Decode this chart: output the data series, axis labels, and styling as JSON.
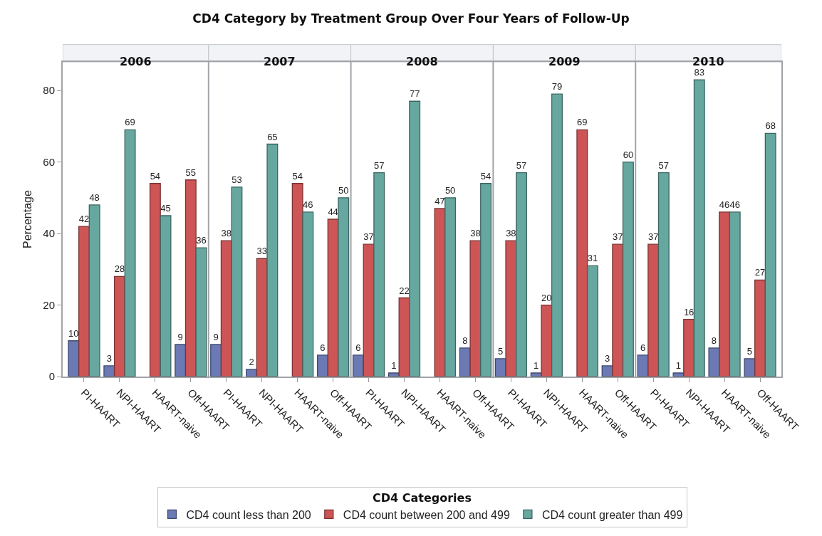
{
  "chart_data": {
    "type": "bar",
    "title": "CD4 Category by Treatment Group Over Four Years of Follow-Up",
    "ylabel": "Percentage",
    "legend_title": "CD4 Categories",
    "legend": "bottom",
    "annotations": [
      "2006",
      "2007",
      "2008",
      "2009",
      "2010"
    ],
    "categories": [
      "PI-HAART",
      "NPI-HAART",
      "HAART-naive",
      "Off-HAART",
      "PI-HAART",
      "NPI-HAART",
      "HAART-naive",
      "Off-HAART",
      "PI-HAART",
      "NPI-HAART",
      "HAART-naive",
      "Off-HAART",
      "PI-HAART",
      "NPI-HAART",
      "HAART-naive",
      "Off-HAART",
      "PI-HAART",
      "NPI-HAART",
      "HAART-naive",
      "Off-HAART"
    ],
    "ylim": [
      0,
      88
    ],
    "yticks": [
      0,
      20,
      40,
      60,
      80
    ],
    "data_labels": true,
    "series": [
      {
        "name": "CD4 count less than 200",
        "color": "#6b7ab5",
        "values": [
          10,
          3,
          null,
          9,
          9,
          2,
          null,
          6,
          6,
          1,
          null,
          8,
          5,
          1,
          null,
          3,
          6,
          1,
          8,
          5
        ]
      },
      {
        "name": "CD4 count between 200 and 499",
        "color": "#cd5555",
        "values": [
          42,
          28,
          54,
          55,
          38,
          33,
          54,
          44,
          37,
          22,
          47,
          38,
          38,
          20,
          69,
          37,
          37,
          16,
          46,
          27
        ]
      },
      {
        "name": "CD4 count greater than 499",
        "color": "#66a8a0",
        "values": [
          48,
          69,
          45,
          36,
          53,
          65,
          46,
          50,
          57,
          77,
          50,
          54,
          57,
          79,
          31,
          60,
          57,
          83,
          46,
          68
        ]
      }
    ]
  }
}
